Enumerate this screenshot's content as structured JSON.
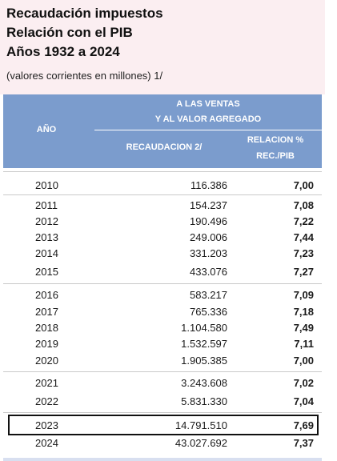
{
  "title": {
    "line1": "Recaudación impuestos",
    "line2": "Relación con el PIB",
    "line3": "Años 1932 a 2024",
    "subtitle": "(valores corrientes en millones) 1/"
  },
  "table_header": {
    "year": "AÑO",
    "group_line1": "A LAS VENTAS",
    "group_line2": "Y AL VALOR AGREGADO",
    "col_rec": "RECAUDACION 2/",
    "col_rel_line1": "RELACION %",
    "col_rel_line2": "REC./PIB"
  },
  "rows": [
    {
      "year": "2010",
      "rec": "116.386",
      "rel": "7,00"
    },
    {
      "year": "2011",
      "rec": "154.237",
      "rel": "7,08"
    },
    {
      "year": "2012",
      "rec": "190.496",
      "rel": "7,22"
    },
    {
      "year": "2013",
      "rec": "249.006",
      "rel": "7,44"
    },
    {
      "year": "2014",
      "rec": "331.203",
      "rel": "7,23"
    },
    {
      "year": "2015",
      "rec": "433.076",
      "rel": "7,27"
    },
    {
      "year": "2016",
      "rec": "583.217",
      "rel": "7,09"
    },
    {
      "year": "2017",
      "rec": "765.336",
      "rel": "7,18"
    },
    {
      "year": "2018",
      "rec": "1.104.580",
      "rel": "7,49"
    },
    {
      "year": "2019",
      "rec": "1.532.597",
      "rel": "7,11"
    },
    {
      "year": "2020",
      "rec": "1.905.385",
      "rel": "7,00"
    },
    {
      "year": "2021",
      "rec": "3.243.608",
      "rel": "7,02"
    },
    {
      "year": "2022",
      "rec": "5.831.330",
      "rel": "7,04"
    },
    {
      "year": "2023",
      "rec": "14.791.510",
      "rel": "7,69"
    },
    {
      "year": "2024",
      "rec": "43.027.692",
      "rel": "7,37"
    }
  ],
  "highlighted_year": "2023",
  "colors": {
    "title_bg": "#fbeef1",
    "header_bg": "#7b9ccd",
    "header_text": "#ffffff"
  }
}
